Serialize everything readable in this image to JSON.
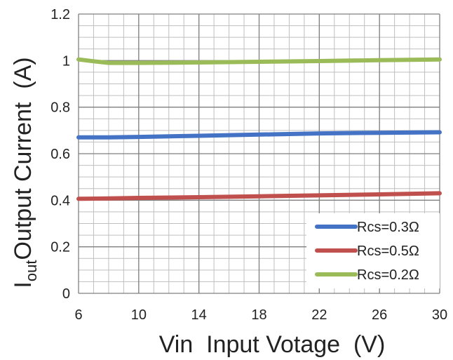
{
  "chart_data": {
    "type": "line",
    "xlabel": "Vin  Input Votage  (V)",
    "ylabel_main": "I",
    "ylabel_sub": "out",
    "ylabel_rest": "Output Current  (A)",
    "xlim": [
      6,
      30
    ],
    "ylim": [
      0,
      1.2
    ],
    "xticks": [
      6,
      10,
      14,
      18,
      22,
      26,
      30
    ],
    "yticks": [
      0,
      0.2,
      0.4,
      0.6,
      0.8,
      1,
      1.2
    ],
    "grid": true,
    "legend_position": "bottom-right",
    "series": [
      {
        "name": "Rcs=0.3Ω",
        "color": "#4472C4",
        "x": [
          6,
          8,
          10,
          14,
          18,
          22,
          26,
          30
        ],
        "y": [
          0.67,
          0.67,
          0.672,
          0.677,
          0.682,
          0.687,
          0.69,
          0.692
        ]
      },
      {
        "name": "Rcs=0.5Ω",
        "color": "#C0504D",
        "x": [
          6,
          8,
          10,
          14,
          18,
          22,
          26,
          30
        ],
        "y": [
          0.406,
          0.408,
          0.41,
          0.413,
          0.417,
          0.421,
          0.425,
          0.43
        ]
      },
      {
        "name": "Rcs=0.2Ω",
        "color": "#9BBB59",
        "x": [
          6,
          7,
          8,
          10,
          14,
          18,
          22,
          26,
          30
        ],
        "y": [
          1.005,
          0.997,
          0.99,
          0.99,
          0.992,
          0.995,
          0.998,
          1.002,
          1.005
        ]
      }
    ]
  }
}
